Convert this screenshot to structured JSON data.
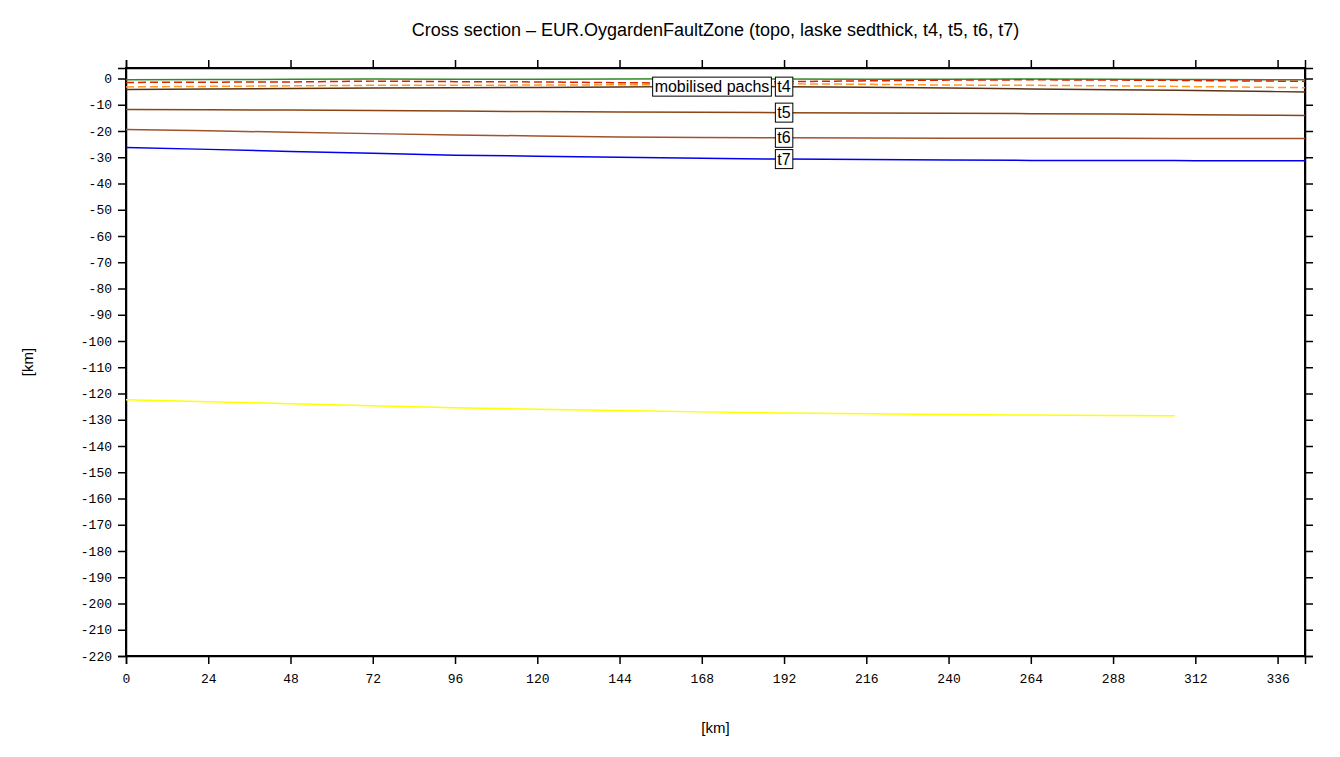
{
  "chart_data": {
    "type": "line",
    "title": "Cross section – EUR.OygardenFaultZone (topo, laske sedthick, t4, t5, t6, t7)",
    "x_label": "[km]",
    "y_label": "[km]",
    "x": [
      0,
      24,
      48,
      72,
      96,
      120,
      144,
      168,
      192,
      216,
      240,
      264,
      288,
      306,
      312,
      336,
      344
    ],
    "xlim": [
      0,
      344
    ],
    "xticks": [
      0,
      24,
      48,
      72,
      96,
      120,
      144,
      168,
      192,
      216,
      240,
      264,
      288,
      312,
      336
    ],
    "ylim": [
      -220,
      4
    ],
    "yticks": [
      0,
      -10,
      -20,
      -30,
      -40,
      -50,
      -60,
      -70,
      -80,
      -90,
      -100,
      -110,
      -120,
      -130,
      -140,
      -150,
      -160,
      -170,
      -180,
      -190,
      -200,
      -210,
      -220
    ],
    "grid": false,
    "annotations": [
      {
        "text": "mobilised pachs"
      }
    ],
    "series": [
      {
        "color": "#2e8b22",
        "line_style": "solid",
        "values": [
          -0.5,
          -0.4,
          -0.3,
          -0.2,
          -0.3,
          -0.3,
          -0.2,
          -0.1,
          -0.2,
          -0.3,
          -0.3,
          -0.2,
          -0.3,
          -0.4,
          -0.4,
          -0.5,
          -0.5
        ]
      },
      {
        "color": "#dd2200",
        "line_style": "dashed",
        "values": [
          -1.5,
          -1.4,
          -1.3,
          -1.0,
          -1.2,
          -1.3,
          -1.6,
          -1.8,
          -1.2,
          -0.9,
          -0.6,
          -0.5,
          -0.6,
          -0.7,
          -0.8,
          -1.0,
          -1.1
        ]
      },
      {
        "color": "#ff9922",
        "line_style": "dashed",
        "values": [
          -3.2,
          -3.0,
          -2.8,
          -2.6,
          -2.6,
          -2.5,
          -2.4,
          -2.3,
          -2.0,
          -2.2,
          -2.5,
          -2.6,
          -2.8,
          -3.0,
          -3.1,
          -3.4,
          -3.5
        ]
      },
      {
        "name": "t4",
        "color": "#5c3317",
        "line_style": "solid",
        "values": [
          -4.2,
          -4.0,
          -3.8,
          -3.6,
          -3.5,
          -3.4,
          -3.2,
          -3.0,
          -3.1,
          -3.3,
          -3.6,
          -4.0,
          -4.3,
          -4.5,
          -4.6,
          -5.0,
          -5.1
        ]
      },
      {
        "name": "t5",
        "color": "#8b4513",
        "line_style": "solid",
        "values": [
          -11.8,
          -11.9,
          -12.0,
          -12.2,
          -12.4,
          -12.6,
          -12.8,
          -12.9,
          -13.0,
          -13.1,
          -13.2,
          -13.4,
          -13.5,
          -13.7,
          -13.8,
          -14.0,
          -14.1
        ]
      },
      {
        "name": "t6",
        "color": "#a0522d",
        "line_style": "solid",
        "values": [
          -19.4,
          -19.9,
          -20.5,
          -21.0,
          -21.5,
          -21.9,
          -22.3,
          -22.5,
          -22.6,
          -22.7,
          -22.8,
          -22.8,
          -22.8,
          -22.9,
          -22.9,
          -22.9,
          -22.9
        ]
      },
      {
        "name": "t7",
        "color": "#0000ee",
        "line_style": "solid",
        "values": [
          -26.3,
          -27.0,
          -27.8,
          -28.5,
          -29.2,
          -29.6,
          -30.0,
          -30.4,
          -30.7,
          -30.9,
          -31.0,
          -31.2,
          -31.2,
          -31.2,
          -31.3,
          -31.3,
          -31.3
        ]
      },
      {
        "color": "#ffff00",
        "line_style": "solid",
        "values": [
          -122.4,
          -123.1,
          -123.9,
          -124.7,
          -125.4,
          -126.0,
          -126.5,
          -127.0,
          -127.4,
          -127.7,
          -128.0,
          -128.2,
          -128.4,
          -128.5,
          null,
          null,
          null
        ]
      }
    ]
  }
}
